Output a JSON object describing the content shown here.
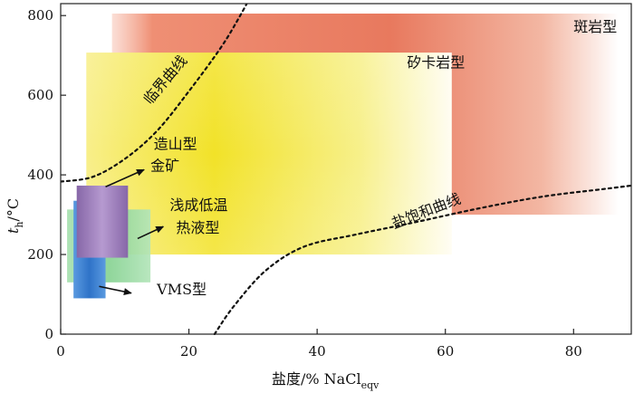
{
  "chart_data": {
    "type": "area",
    "xlabel": "盐度/% NaCl",
    "xlabel_sub": "eqv",
    "ylabel": "t",
    "ylabel_sub": "h",
    "ylabel_unit": "/°C",
    "xlim": [
      0,
      89
    ],
    "ylim": [
      0,
      830
    ],
    "xticks": [
      0,
      20,
      40,
      60,
      80
    ],
    "yticks": [
      0,
      200,
      400,
      600,
      800
    ],
    "grid": false,
    "regions": [
      {
        "name": "斑岩型",
        "x": [
          8,
          87
        ],
        "y": [
          300,
          805
        ],
        "color": "#e8785c"
      },
      {
        "name": "矽卡岩型",
        "x": [
          4,
          61
        ],
        "y": [
          200,
          707
        ],
        "color": "#f2e63a"
      },
      {
        "name": "浅成低温热液型",
        "x": [
          1,
          14
        ],
        "y": [
          130,
          313
        ],
        "color": "#8fd79a"
      },
      {
        "name": "VMS型",
        "x": [
          2,
          7
        ],
        "y": [
          90,
          335
        ],
        "color": "#3a7fd0"
      },
      {
        "name": "造山型金矿",
        "x": [
          2.5,
          10.5
        ],
        "y": [
          192,
          373
        ],
        "color": "#9b78b8"
      }
    ],
    "curves": [
      {
        "name": "临界曲线",
        "points": [
          [
            0,
            383
          ],
          [
            5,
            395
          ],
          [
            10,
            440
          ],
          [
            15,
            510
          ],
          [
            20,
            610
          ],
          [
            25,
            720
          ],
          [
            28,
            800
          ],
          [
            30,
            860
          ]
        ]
      },
      {
        "name": "盐饱和曲线",
        "points": [
          [
            24,
            0
          ],
          [
            27,
            70
          ],
          [
            32,
            160
          ],
          [
            38,
            220
          ],
          [
            46,
            250
          ],
          [
            55,
            280
          ],
          [
            65,
            315
          ],
          [
            75,
            345
          ],
          [
            85,
            365
          ],
          [
            89,
            373
          ]
        ]
      }
    ],
    "annotations": [
      {
        "text": "斑岩型",
        "x": 80,
        "y": 760
      },
      {
        "text": "矽卡岩型",
        "x": 54,
        "y": 670
      },
      {
        "text": "临界曲线",
        "x": 14,
        "y": 575,
        "rotate": -50
      },
      {
        "text": "造山型",
        "x": 14.5,
        "y": 465
      },
      {
        "text": "金矿",
        "x": 14,
        "y": 410
      },
      {
        "text": "浅成低温",
        "x": 17,
        "y": 312
      },
      {
        "text": "热液型",
        "x": 18,
        "y": 255
      },
      {
        "text": "盐饱和曲线",
        "x": 52,
        "y": 265,
        "rotate": -21
      },
      {
        "text": "VMS型",
        "x": 15,
        "y": 100
      }
    ],
    "arrows": [
      {
        "from": [
          7,
          370
        ],
        "to": [
          13,
          413
        ]
      },
      {
        "from": [
          12,
          240
        ],
        "to": [
          16,
          270
        ]
      },
      {
        "from": [
          6,
          120
        ],
        "to": [
          11,
          103
        ]
      }
    ]
  }
}
